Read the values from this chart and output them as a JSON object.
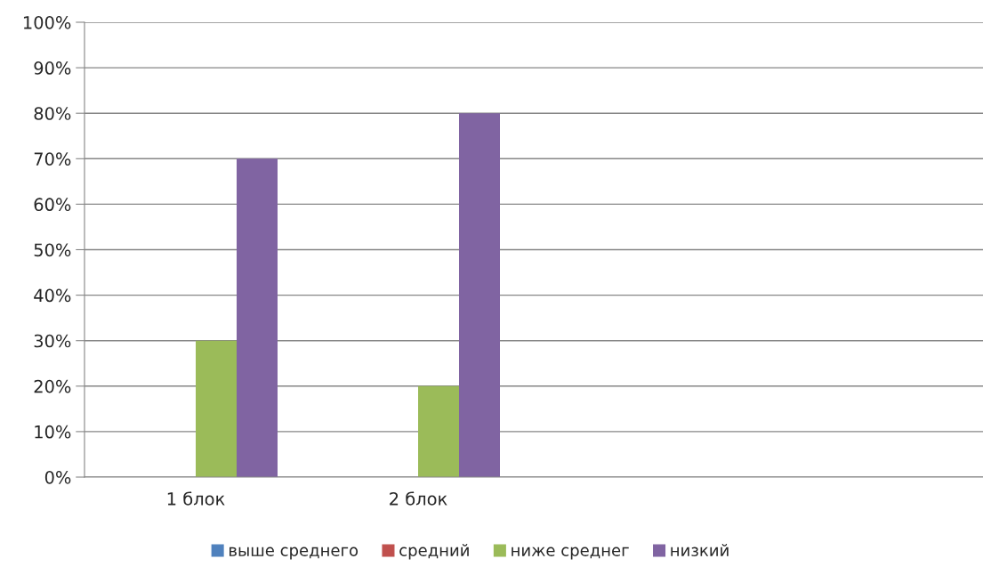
{
  "chart_data": {
    "type": "bar",
    "categories": [
      "1 блок",
      "2 блок",
      null,
      null
    ],
    "series": [
      {
        "name": "выше среднего",
        "color": "#4f81bd",
        "values": [
          0,
          0,
          null,
          null
        ]
      },
      {
        "name": "средний",
        "color": "#c0504d",
        "values": [
          0,
          0,
          null,
          null
        ]
      },
      {
        "name": "ниже среднег",
        "color": "#9bbb59",
        "values": [
          30,
          20,
          null,
          null
        ]
      },
      {
        "name": "низкий",
        "color": "#8064a2",
        "values": [
          70,
          80,
          null,
          null
        ]
      }
    ],
    "ylim": [
      0,
      100
    ],
    "yticks": [
      {
        "value": 0,
        "label": "0%"
      },
      {
        "value": 10,
        "label": "10%"
      },
      {
        "value": 20,
        "label": "20%"
      },
      {
        "value": 30,
        "label": "30%"
      },
      {
        "value": 40,
        "label": "40%"
      },
      {
        "value": 50,
        "label": "50%"
      },
      {
        "value": 60,
        "label": "60%"
      },
      {
        "value": 70,
        "label": "70%"
      },
      {
        "value": 80,
        "label": "80%"
      },
      {
        "value": 90,
        "label": "90%"
      },
      {
        "value": 100,
        "label": "100%"
      }
    ],
    "grid": "y",
    "legend": "bottom"
  }
}
